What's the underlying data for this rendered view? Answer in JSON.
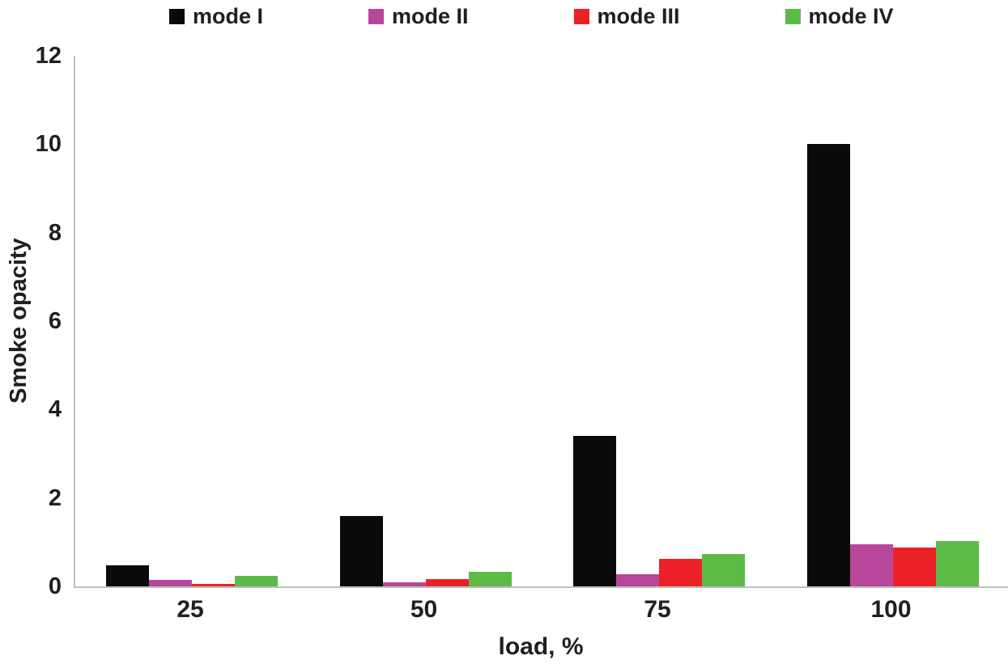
{
  "chart_data": {
    "type": "bar",
    "title": "",
    "xlabel": "load, %",
    "ylabel": "Smoke opacity",
    "categories": [
      "25",
      "50",
      "75",
      "100"
    ],
    "series": [
      {
        "name": "mode I",
        "color": "#0a0a0a",
        "values": [
          0.48,
          1.6,
          3.4,
          10.0
        ]
      },
      {
        "name": "mode II",
        "color": "#b8479b",
        "values": [
          0.15,
          0.1,
          0.27,
          0.95
        ]
      },
      {
        "name": "mode III",
        "color": "#ec2127",
        "values": [
          0.05,
          0.17,
          0.62,
          0.87
        ]
      },
      {
        "name": "mode IV",
        "color": "#5cba47",
        "values": [
          0.23,
          0.33,
          0.74,
          1.02
        ]
      }
    ],
    "ylim": [
      0,
      12
    ],
    "ytick_step": 2,
    "ytick_labels": [
      "0",
      "2",
      "4",
      "6",
      "8",
      "10",
      "12"
    ],
    "legend_position": "top",
    "grid": false,
    "axis_line_color": "#bfbfbf"
  }
}
